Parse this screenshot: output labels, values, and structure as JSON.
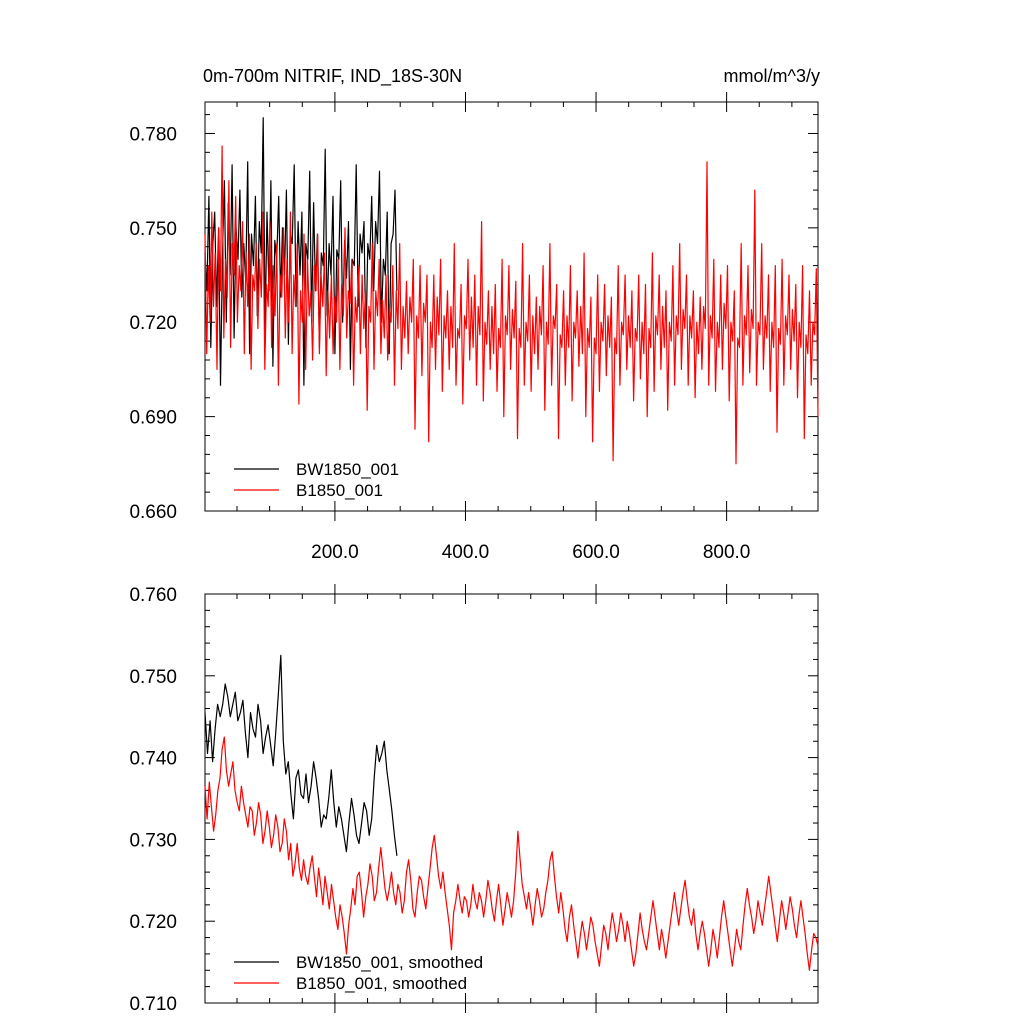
{
  "chart_data": [
    {
      "type": "line",
      "title": "0m-700m NITRIF, IND_18S-30N",
      "units": "mmol/m^3/y",
      "xlim": [
        1,
        940
      ],
      "ylim": [
        0.66,
        0.79
      ],
      "x_ticks": [
        200,
        400,
        600,
        800
      ],
      "x_tick_labels": [
        "200.0",
        "400.0",
        "600.0",
        "800.0"
      ],
      "y_ticks": [
        0.66,
        0.69,
        0.72,
        0.75,
        0.78
      ],
      "y_tick_labels": [
        "0.660",
        "0.690",
        "0.720",
        "0.750",
        "0.780"
      ],
      "legend": "bottom-left",
      "grid": false,
      "series": [
        {
          "name": "BW1850_001",
          "color": "#000000",
          "x_range": [
            1,
            295
          ],
          "values": [
            0.742,
            0.73,
            0.76,
            0.712,
            0.745,
            0.755,
            0.725,
            0.75,
            0.7,
            0.74,
            0.765,
            0.72,
            0.758,
            0.735,
            0.77,
            0.715,
            0.75,
            0.74,
            0.762,
            0.728,
            0.745,
            0.733,
            0.771,
            0.71,
            0.748,
            0.738,
            0.76,
            0.722,
            0.752,
            0.742,
            0.785,
            0.718,
            0.755,
            0.73,
            0.765,
            0.706,
            0.746,
            0.74,
            0.76,
            0.728,
            0.75,
            0.735,
            0.762,
            0.713,
            0.748,
            0.745,
            0.77,
            0.725,
            0.752,
            0.735,
            0.755,
            0.7,
            0.745,
            0.74,
            0.768,
            0.72,
            0.758,
            0.73,
            0.748,
            0.712,
            0.742,
            0.738,
            0.775,
            0.722,
            0.745,
            0.735,
            0.76,
            0.71,
            0.743,
            0.74,
            0.765,
            0.72,
            0.746,
            0.734,
            0.752,
            0.705,
            0.74,
            0.738,
            0.77,
            0.725,
            0.748,
            0.742,
            0.752,
            0.712,
            0.745,
            0.74,
            0.76,
            0.73,
            0.752,
            0.745,
            0.768,
            0.72,
            0.74,
            0.735,
            0.755,
            0.71,
            0.745,
            0.748,
            0.762,
            0.73
          ]
        },
        {
          "name": "B1850_001",
          "color": "#ff0000",
          "x_range": [
            1,
            940
          ],
          "values": [
            0.748,
            0.71,
            0.738,
            0.72,
            0.755,
            0.725,
            0.742,
            0.705,
            0.75,
            0.73,
            0.776,
            0.715,
            0.74,
            0.728,
            0.765,
            0.712,
            0.745,
            0.735,
            0.76,
            0.72,
            0.738,
            0.73,
            0.752,
            0.71,
            0.742,
            0.725,
            0.748,
            0.705,
            0.735,
            0.73,
            0.745,
            0.718,
            0.74,
            0.728,
            0.755,
            0.705,
            0.732,
            0.725,
            0.752,
            0.712,
            0.738,
            0.722,
            0.745,
            0.7,
            0.735,
            0.728,
            0.75,
            0.715,
            0.74,
            0.72,
            0.755,
            0.71,
            0.735,
            0.725,
            0.745,
            0.694,
            0.73,
            0.72,
            0.748,
            0.705,
            0.74,
            0.722,
            0.73,
            0.708,
            0.738,
            0.73,
            0.748,
            0.71,
            0.735,
            0.725,
            0.742,
            0.703,
            0.73,
            0.715,
            0.735,
            0.71,
            0.728,
            0.72,
            0.74,
            0.705,
            0.732,
            0.722,
            0.75,
            0.715,
            0.73,
            0.726,
            0.74,
            0.7,
            0.728,
            0.72,
            0.738,
            0.71,
            0.735,
            0.718,
            0.73,
            0.692,
            0.725,
            0.72,
            0.745,
            0.705,
            0.73,
            0.722,
            0.74,
            0.71,
            0.727,
            0.715,
            0.735,
            0.708,
            0.725,
            0.72,
            0.738,
            0.7,
            0.73,
            0.718,
            0.745,
            0.705,
            0.725,
            0.715,
            0.733,
            0.71,
            0.728,
            0.72,
            0.74,
            0.686,
            0.722,
            0.715,
            0.738,
            0.703,
            0.726,
            0.72,
            0.735,
            0.682,
            0.72,
            0.712,
            0.735,
            0.705,
            0.728,
            0.716,
            0.74,
            0.698,
            0.722,
            0.715,
            0.73,
            0.705,
            0.725,
            0.712,
            0.745,
            0.7,
            0.718,
            0.715,
            0.732,
            0.694,
            0.722,
            0.718,
            0.74,
            0.708,
            0.728,
            0.712,
            0.735,
            0.7,
            0.725,
            0.716,
            0.752,
            0.695,
            0.72,
            0.713,
            0.73,
            0.705,
            0.725,
            0.71,
            0.732,
            0.698,
            0.718,
            0.712,
            0.74,
            0.69,
            0.722,
            0.716,
            0.738,
            0.705,
            0.724,
            0.715,
            0.733,
            0.683,
            0.718,
            0.712,
            0.745,
            0.7,
            0.72,
            0.714,
            0.735,
            0.698,
            0.722,
            0.71,
            0.728,
            0.705,
            0.725,
            0.716,
            0.738,
            0.692,
            0.72,
            0.713,
            0.745,
            0.7,
            0.722,
            0.718,
            0.732,
            0.683,
            0.716,
            0.712,
            0.73,
            0.7,
            0.722,
            0.712,
            0.738,
            0.695,
            0.72,
            0.715,
            0.73,
            0.706,
            0.725,
            0.71,
            0.742,
            0.69,
            0.718,
            0.712,
            0.728,
            0.682,
            0.715,
            0.71,
            0.735,
            0.698,
            0.72,
            0.714,
            0.732,
            0.703,
            0.722,
            0.712,
            0.728,
            0.676,
            0.715,
            0.71,
            0.738,
            0.7,
            0.72,
            0.716,
            0.735,
            0.705,
            0.722,
            0.712,
            0.73,
            0.695,
            0.718,
            0.714,
            0.735,
            0.702,
            0.72,
            0.71,
            0.732,
            0.69,
            0.718,
            0.712,
            0.742,
            0.698,
            0.722,
            0.716,
            0.735,
            0.705,
            0.725,
            0.712,
            0.73,
            0.692,
            0.72,
            0.714,
            0.738,
            0.7,
            0.722,
            0.716,
            0.745,
            0.705,
            0.724,
            0.718,
            0.735,
            0.7,
            0.722,
            0.715,
            0.73,
            0.696,
            0.72,
            0.71,
            0.728,
            0.705,
            0.725,
            0.718,
            0.771,
            0.7,
            0.722,
            0.715,
            0.74,
            0.698,
            0.72,
            0.712,
            0.735,
            0.705,
            0.726,
            0.718,
            0.738,
            0.695,
            0.72,
            0.714,
            0.73,
            0.675,
            0.715,
            0.712,
            0.745,
            0.7,
            0.722,
            0.716,
            0.738,
            0.704,
            0.724,
            0.718,
            0.762,
            0.7,
            0.72,
            0.716,
            0.745,
            0.705,
            0.722,
            0.715,
            0.735,
            0.698,
            0.72,
            0.712,
            0.738,
            0.685,
            0.718,
            0.713,
            0.74,
            0.7,
            0.722,
            0.716,
            0.735,
            0.705,
            0.724,
            0.714,
            0.732,
            0.696,
            0.72,
            0.712,
            0.738,
            0.683,
            0.716,
            0.71,
            0.73,
            0.7,
            0.72,
            0.716,
            0.737,
            0.69
          ]
        }
      ]
    },
    {
      "type": "line",
      "xlim": [
        1,
        940
      ],
      "ylim": [
        0.71,
        0.76
      ],
      "y_ticks": [
        0.71,
        0.72,
        0.73,
        0.74,
        0.75,
        0.76
      ],
      "y_tick_labels": [
        "0.710",
        "0.720",
        "0.730",
        "0.740",
        "0.750",
        "0.760"
      ],
      "x_ticks": [
        200,
        400,
        600,
        800
      ],
      "legend": "bottom-left",
      "grid": false,
      "series": [
        {
          "name": "BW1850_001, smoothed",
          "color": "#000000",
          "x_range": [
            1,
            295
          ],
          "values": [
            0.7455,
            0.7405,
            0.7445,
            0.7395,
            0.7435,
            0.7465,
            0.745,
            0.7465,
            0.749,
            0.7475,
            0.745,
            0.7465,
            0.748,
            0.7445,
            0.7455,
            0.747,
            0.743,
            0.74,
            0.7455,
            0.7435,
            0.7425,
            0.7465,
            0.7445,
            0.7405,
            0.7425,
            0.744,
            0.7415,
            0.739,
            0.743,
            0.7475,
            0.7525,
            0.742,
            0.738,
            0.7395,
            0.7355,
            0.7325,
            0.7375,
            0.7385,
            0.7355,
            0.735,
            0.738,
            0.7345,
            0.7365,
            0.7395,
            0.7375,
            0.735,
            0.7315,
            0.733,
            0.7325,
            0.735,
            0.7385,
            0.7345,
            0.7315,
            0.734,
            0.7325,
            0.7305,
            0.7285,
            0.732,
            0.735,
            0.733,
            0.7305,
            0.7295,
            0.732,
            0.7345,
            0.7335,
            0.7305,
            0.7325,
            0.7375,
            0.7415,
            0.7395,
            0.7405,
            0.742,
            0.7385,
            0.736,
            0.7335,
            0.7305,
            0.728
          ]
        },
        {
          "name": "B1850_001, smoothed",
          "color": "#ff0000",
          "x_range": [
            1,
            940
          ],
          "values": [
            0.7365,
            0.7325,
            0.737,
            0.734,
            0.731,
            0.733,
            0.736,
            0.7375,
            0.741,
            0.7425,
            0.7385,
            0.7365,
            0.738,
            0.7395,
            0.736,
            0.7345,
            0.7335,
            0.7365,
            0.7345,
            0.733,
            0.7315,
            0.734,
            0.7335,
            0.7305,
            0.732,
            0.7345,
            0.733,
            0.7295,
            0.731,
            0.7335,
            0.7315,
            0.729,
            0.7305,
            0.733,
            0.7315,
            0.7285,
            0.7295,
            0.7325,
            0.731,
            0.7275,
            0.7295,
            0.7255,
            0.727,
            0.7295,
            0.7265,
            0.725,
            0.7275,
            0.7255,
            0.7245,
            0.7265,
            0.728,
            0.7255,
            0.723,
            0.7265,
            0.7245,
            0.722,
            0.7255,
            0.7235,
            0.7215,
            0.7245,
            0.7225,
            0.7205,
            0.719,
            0.722,
            0.7205,
            0.7185,
            0.716,
            0.7195,
            0.7215,
            0.724,
            0.722,
            0.7255,
            0.726,
            0.7235,
            0.7205,
            0.723,
            0.7245,
            0.727,
            0.7255,
            0.7225,
            0.7235,
            0.7265,
            0.729,
            0.7265,
            0.724,
            0.7225,
            0.724,
            0.726,
            0.7235,
            0.722,
            0.7245,
            0.7235,
            0.721,
            0.7225,
            0.726,
            0.7275,
            0.725,
            0.7215,
            0.7205,
            0.7235,
            0.7255,
            0.725,
            0.723,
            0.7215,
            0.724,
            0.7265,
            0.729,
            0.7305,
            0.728,
            0.7255,
            0.724,
            0.726,
            0.7235,
            0.7215,
            0.7195,
            0.7165,
            0.721,
            0.7225,
            0.7245,
            0.7225,
            0.721,
            0.723,
            0.7225,
            0.7205,
            0.722,
            0.7245,
            0.7225,
            0.7215,
            0.7235,
            0.7225,
            0.7205,
            0.7225,
            0.725,
            0.7235,
            0.7215,
            0.72,
            0.7225,
            0.7245,
            0.722,
            0.7195,
            0.7215,
            0.7235,
            0.722,
            0.7205,
            0.7225,
            0.726,
            0.731,
            0.7275,
            0.7245,
            0.723,
            0.7215,
            0.7235,
            0.7215,
            0.7195,
            0.722,
            0.724,
            0.7225,
            0.7205,
            0.7215,
            0.7235,
            0.725,
            0.7275,
            0.7285,
            0.7255,
            0.723,
            0.721,
            0.7235,
            0.7215,
            0.719,
            0.7175,
            0.7205,
            0.722,
            0.7195,
            0.7175,
            0.7155,
            0.718,
            0.72,
            0.7185,
            0.7165,
            0.7185,
            0.7205,
            0.7195,
            0.7175,
            0.716,
            0.7145,
            0.717,
            0.7195,
            0.7185,
            0.7165,
            0.719,
            0.721,
            0.7195,
            0.7175,
            0.719,
            0.721,
            0.7195,
            0.7175,
            0.72,
            0.7185,
            0.7165,
            0.7145,
            0.716,
            0.7185,
            0.721,
            0.719,
            0.7175,
            0.7165,
            0.7185,
            0.7205,
            0.7225,
            0.7205,
            0.7185,
            0.7165,
            0.719,
            0.7175,
            0.7155,
            0.7175,
            0.7195,
            0.7215,
            0.7235,
            0.7215,
            0.7195,
            0.7215,
            0.7235,
            0.725,
            0.7225,
            0.7205,
            0.7195,
            0.7215,
            0.7185,
            0.7165,
            0.7185,
            0.72,
            0.7185,
            0.7165,
            0.7145,
            0.7165,
            0.719,
            0.7175,
            0.7155,
            0.718,
            0.7205,
            0.7225,
            0.7205,
            0.7185,
            0.7165,
            0.7145,
            0.7165,
            0.719,
            0.7175,
            0.7165,
            0.7195,
            0.722,
            0.724,
            0.722,
            0.7205,
            0.7185,
            0.72,
            0.7225,
            0.721,
            0.7195,
            0.7215,
            0.7235,
            0.7255,
            0.7235,
            0.7215,
            0.7195,
            0.7175,
            0.72,
            0.7225,
            0.721,
            0.719,
            0.721,
            0.723,
            0.7215,
            0.7195,
            0.718,
            0.7205,
            0.7225,
            0.7205,
            0.7185,
            0.716,
            0.714,
            0.7165,
            0.7185,
            0.718,
            0.717
          ]
        }
      ]
    }
  ]
}
